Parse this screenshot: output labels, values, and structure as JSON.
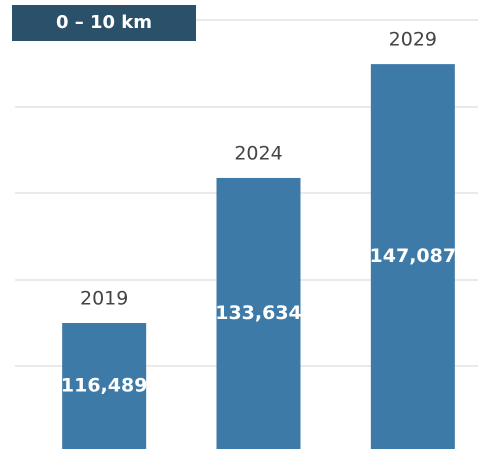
{
  "chart_data": {
    "type": "bar",
    "title": "0 – 10 km",
    "categories": [
      "2019",
      "2024",
      "2029"
    ],
    "values": [
      116489,
      133634,
      147087
    ],
    "value_labels": [
      "116,489",
      "133,634",
      "147,087"
    ],
    "color": "#3d7aa8",
    "ylim": [
      101600,
      152300
    ]
  }
}
